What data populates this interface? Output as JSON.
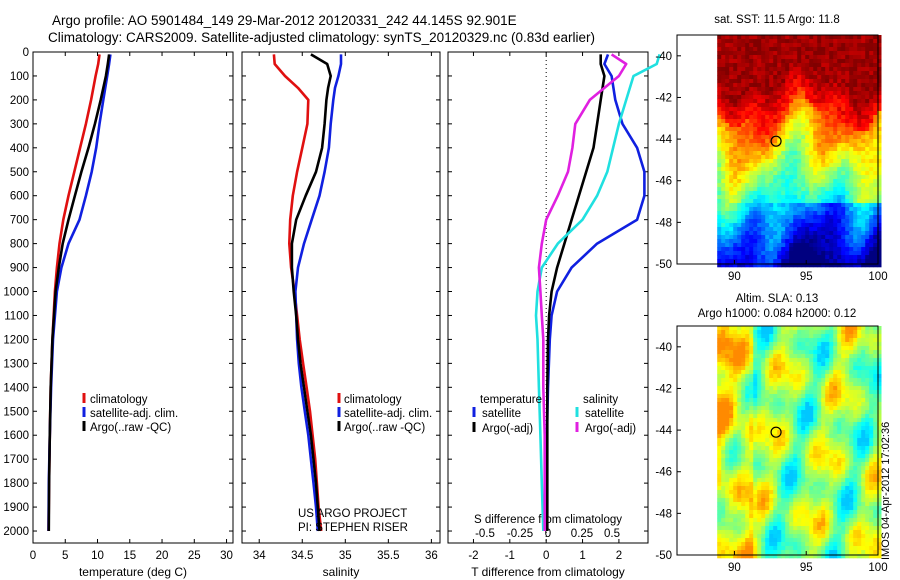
{
  "header": {
    "line1": "Argo profile: AO 5901484_149 29-Mar-2012 20120331_242 44.145S 92.901E",
    "line2": "Climatology: CARS2009. Satellite-adjusted climatology: synTS_20120329.nc (0.83d earlier)"
  },
  "colors": {
    "climatology": "#e01010",
    "satellite": "#1020e0",
    "argo": "#000000",
    "sat_salinity": "#20e0e0",
    "argo_salinity_diff": "#e020e0"
  },
  "chart_data": [
    {
      "type": "line",
      "id": "temperature",
      "xlabel": "temperature (deg C)",
      "ylabel": "",
      "xlim": [
        0,
        31
      ],
      "ylim": [
        2050,
        0
      ],
      "xticks": [
        "0",
        "5",
        "10",
        "15",
        "20",
        "25",
        "30"
      ],
      "yticks": [
        "0",
        "100",
        "200",
        "300",
        "400",
        "500",
        "600",
        "700",
        "800",
        "900",
        "1000",
        "1100",
        "1200",
        "1300",
        "1400",
        "1500",
        "1600",
        "1700",
        "1800",
        "1900",
        "2000"
      ],
      "legend": [
        "climatology",
        "satellite-adj. clim.",
        "Argo(..raw -QC)"
      ],
      "series": [
        {
          "name": "climatology",
          "depth": [
            10,
            50,
            100,
            200,
            300,
            400,
            500,
            600,
            700,
            800,
            900,
            1000,
            1200,
            1400,
            1600,
            1800,
            2000
          ],
          "values": [
            10.3,
            10.1,
            9.7,
            9.0,
            8.2,
            7.3,
            6.4,
            5.5,
            4.7,
            4.1,
            3.7,
            3.4,
            3.0,
            2.75,
            2.6,
            2.5,
            2.4
          ]
        },
        {
          "name": "satellite-adj. clim.",
          "depth": [
            10,
            50,
            100,
            200,
            300,
            400,
            500,
            600,
            700,
            800,
            900,
            1000,
            1200,
            1400,
            1600,
            1800,
            2000
          ],
          "values": [
            12.0,
            11.8,
            11.5,
            10.9,
            10.3,
            9.8,
            9.1,
            8.2,
            7.2,
            5.5,
            4.4,
            3.7,
            3.1,
            2.8,
            2.6,
            2.45,
            2.4
          ]
        },
        {
          "name": "Argo(..raw -QC)",
          "depth": [
            10,
            50,
            100,
            200,
            300,
            400,
            500,
            600,
            700,
            800,
            900,
            1000,
            1200,
            1400,
            1600,
            1800,
            2000
          ],
          "values": [
            11.8,
            11.6,
            11.3,
            10.5,
            9.6,
            8.6,
            7.5,
            6.5,
            5.5,
            4.6,
            4.0,
            3.5,
            3.0,
            2.75,
            2.6,
            2.5,
            2.45
          ]
        }
      ]
    },
    {
      "type": "line",
      "id": "salinity",
      "xlabel": "salinity",
      "xlim": [
        33.8,
        36.1
      ],
      "ylim": [
        2050,
        0
      ],
      "xticks": [
        "34",
        "34.5",
        "35",
        "35.5",
        "36"
      ],
      "legend": [
        "climatology",
        "satellite-adj. clim.",
        "Argo(..raw -QC)"
      ],
      "annotation": [
        "US ARGO PROJECT",
        "PI: STEPHEN RISER"
      ],
      "series": [
        {
          "name": "climatology",
          "depth": [
            10,
            50,
            100,
            150,
            200,
            300,
            400,
            500,
            600,
            700,
            800,
            900,
            1000,
            1100,
            1200,
            1300,
            1400,
            1500,
            1600,
            1700,
            1800,
            1900,
            2000
          ],
          "values": [
            34.17,
            34.18,
            34.3,
            34.45,
            34.57,
            34.56,
            34.5,
            34.44,
            34.39,
            34.36,
            34.35,
            34.37,
            34.41,
            34.44,
            34.47,
            34.51,
            34.55,
            34.59,
            34.62,
            34.65,
            34.67,
            34.69,
            34.72
          ]
        },
        {
          "name": "satellite-adj. clim.",
          "depth": [
            10,
            50,
            100,
            150,
            200,
            300,
            400,
            500,
            600,
            700,
            800,
            900,
            1000,
            1100,
            1200,
            1300,
            1400,
            1500,
            1600,
            1700,
            1800,
            1900,
            2000
          ],
          "values": [
            34.95,
            34.95,
            34.92,
            34.88,
            34.86,
            34.83,
            34.81,
            34.76,
            34.7,
            34.61,
            34.52,
            34.45,
            34.42,
            34.43,
            34.44,
            34.46,
            34.49,
            34.53,
            34.57,
            34.6,
            34.63,
            34.66,
            34.68
          ]
        },
        {
          "name": "Argo(..raw -QC)",
          "depth": [
            10,
            50,
            100,
            150,
            200,
            300,
            400,
            500,
            600,
            700,
            800,
            900,
            1000,
            1100,
            1200,
            1300,
            1400,
            1500,
            1600,
            1700,
            1800,
            1900,
            2000
          ],
          "values": [
            34.6,
            34.79,
            34.83,
            34.8,
            34.78,
            34.76,
            34.73,
            34.66,
            34.54,
            34.43,
            34.38,
            34.38,
            34.4,
            34.43,
            34.45,
            34.48,
            34.52,
            34.56,
            34.6,
            34.63,
            34.66,
            34.68,
            34.7
          ]
        }
      ]
    },
    {
      "type": "line",
      "id": "differences",
      "xlabel": "T difference from climatology",
      "xlabel2": "S difference from climatology",
      "xlim": [
        -2.7,
        2.8
      ],
      "ylim": [
        2050,
        0
      ],
      "xticks": [
        "-2",
        "-1",
        "0",
        "1",
        "2"
      ],
      "sticks": [
        "-0.5",
        "-0.25",
        "0",
        "0.25",
        "0.5"
      ],
      "legend_titles": [
        "temperature",
        "salinity"
      ],
      "legend": [
        "satellite",
        "Argo(-adj)",
        "satellite",
        "Argo(-adj)"
      ],
      "series": [
        {
          "name": "temperature satellite",
          "depth": [
            10,
            50,
            100,
            200,
            300,
            400,
            500,
            600,
            700,
            800,
            900,
            1000,
            1100,
            1200,
            1400,
            1600,
            1800,
            2000
          ],
          "values": [
            1.7,
            1.6,
            1.8,
            1.9,
            2.1,
            2.5,
            2.7,
            2.7,
            2.5,
            1.4,
            0.7,
            0.3,
            0.15,
            0.1,
            0.05,
            0.02,
            0.02,
            0.02
          ]
        },
        {
          "name": "temperature Argo(-adj)",
          "depth": [
            10,
            50,
            100,
            200,
            300,
            400,
            500,
            600,
            700,
            800,
            900,
            1000,
            1100,
            1200,
            1400,
            1600,
            1800,
            2000
          ],
          "values": [
            1.5,
            1.5,
            1.6,
            1.5,
            1.4,
            1.3,
            1.1,
            0.9,
            0.7,
            0.5,
            0.3,
            0.15,
            0.08,
            0.05,
            0.03,
            0.03,
            0.03,
            0.03
          ]
        },
        {
          "name": "salinity satellite",
          "depth": [
            10,
            50,
            100,
            200,
            300,
            400,
            500,
            600,
            700,
            800,
            900,
            1000,
            1100,
            1200,
            1400,
            1600,
            1800,
            2000
          ],
          "values": [
            0.78,
            0.76,
            0.6,
            0.55,
            0.5,
            0.46,
            0.42,
            0.35,
            0.25,
            0.08,
            -0.03,
            -0.06,
            -0.07,
            -0.06,
            -0.05,
            -0.04,
            -0.03,
            -0.02
          ]
        },
        {
          "name": "salinity Argo(-adj)",
          "depth": [
            10,
            50,
            100,
            200,
            300,
            400,
            500,
            600,
            700,
            800,
            900,
            1000,
            1100,
            1200,
            1400,
            1600,
            1800,
            2000
          ],
          "values": [
            0.45,
            0.55,
            0.5,
            0.3,
            0.2,
            0.18,
            0.15,
            0.08,
            0.0,
            -0.03,
            -0.05,
            -0.04,
            -0.03,
            -0.02,
            -0.02,
            -0.01,
            -0.01,
            -0.01
          ]
        }
      ]
    },
    {
      "type": "heatmap",
      "id": "sst_map",
      "title": "sat. SST: 11.5 Argo: 11.8",
      "xlim": [
        86,
        100
      ],
      "ylim": [
        -50,
        -39
      ],
      "xticks": [
        "90",
        "95",
        "100"
      ],
      "yticks": [
        "-40",
        "-42",
        "-44",
        "-46",
        "-48",
        "-50"
      ],
      "marker": {
        "lon": 92.9,
        "lat": -44.1
      }
    },
    {
      "type": "heatmap",
      "id": "sla_map",
      "title": "Altim. SLA: 0.13",
      "title2": "Argo h1000: 0.084 h2000: 0.12",
      "xlim": [
        86,
        100
      ],
      "ylim": [
        -50,
        -39
      ],
      "xticks": [
        "90",
        "95",
        "100"
      ],
      "yticks": [
        "-40",
        "-42",
        "-44",
        "-46",
        "-48",
        "-50"
      ],
      "marker": {
        "lon": 92.9,
        "lat": -44.1
      }
    }
  ],
  "stamp": "IMOS 04-Apr-2012 17:02:36"
}
